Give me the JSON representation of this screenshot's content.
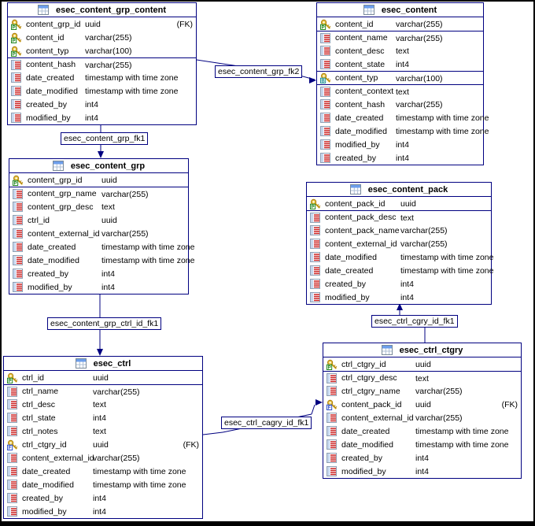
{
  "diagram": {
    "tables": [
      {
        "name": "esec_content_grp_content",
        "columns": [
          {
            "icon": "key-pk",
            "name": "content_grp_id",
            "type": "uuid",
            "tag": "(FK)"
          },
          {
            "icon": "key-pk",
            "name": "content_id",
            "type": "varchar(255)"
          },
          {
            "icon": "key-pk",
            "name": "content_typ",
            "type": "varchar(100)"
          },
          {
            "icon": "column",
            "name": "content_hash",
            "type": "varchar(255)",
            "sepAbove": true
          },
          {
            "icon": "column",
            "name": "date_created",
            "type": "timestamp with time zone"
          },
          {
            "icon": "column",
            "name": "date_modified",
            "type": "timestamp with time zone"
          },
          {
            "icon": "column",
            "name": "created_by",
            "type": "int4"
          },
          {
            "icon": "column",
            "name": "modified_by",
            "type": "int4"
          }
        ]
      },
      {
        "name": "esec_content",
        "columns": [
          {
            "icon": "key-pk",
            "name": "content_id",
            "type": "varchar(255)"
          },
          {
            "icon": "column",
            "name": "content_name",
            "type": "varchar(255)",
            "sepAbove": true
          },
          {
            "icon": "column",
            "name": "content_desc",
            "type": "text"
          },
          {
            "icon": "column",
            "name": "content_state",
            "type": "int4"
          },
          {
            "icon": "key-ak",
            "name": "content_typ",
            "type": "varchar(100)",
            "sepAbove": true
          },
          {
            "icon": "column",
            "name": "content_context",
            "type": "text",
            "sepAbove": true
          },
          {
            "icon": "column",
            "name": "content_hash",
            "type": "varchar(255)"
          },
          {
            "icon": "column",
            "name": "date_created",
            "type": "timestamp with time zone"
          },
          {
            "icon": "column",
            "name": "date_modified",
            "type": "timestamp with time zone"
          },
          {
            "icon": "column",
            "name": "modified_by",
            "type": "int4"
          },
          {
            "icon": "column",
            "name": "created_by",
            "type": "int4"
          }
        ]
      },
      {
        "name": "esec_content_grp",
        "columns": [
          {
            "icon": "key-pk",
            "name": "content_grp_id",
            "type": "uuid"
          },
          {
            "icon": "column",
            "name": "content_grp_name",
            "type": "varchar(255)",
            "sepAbove": true
          },
          {
            "icon": "column",
            "name": "content_grp_desc",
            "type": "text"
          },
          {
            "icon": "column",
            "name": "ctrl_id",
            "type": "uuid"
          },
          {
            "icon": "column",
            "name": "content_external_id",
            "type": "varchar(255)"
          },
          {
            "icon": "column",
            "name": "date_created",
            "type": "timestamp with time zone"
          },
          {
            "icon": "column",
            "name": "date_modified",
            "type": "timestamp with time zone"
          },
          {
            "icon": "column",
            "name": "created_by",
            "type": "int4"
          },
          {
            "icon": "column",
            "name": "modified_by",
            "type": "int4"
          }
        ]
      },
      {
        "name": "esec_content_pack",
        "columns": [
          {
            "icon": "key-pk",
            "name": "content_pack_id",
            "type": "uuid"
          },
          {
            "icon": "column",
            "name": "content_pack_desc",
            "type": "text",
            "sepAbove": true
          },
          {
            "icon": "column",
            "name": "content_pack_name",
            "type": "varchar(255)"
          },
          {
            "icon": "column",
            "name": "content_external_id",
            "type": "varchar(255)"
          },
          {
            "icon": "column",
            "name": "date_modified",
            "type": "timestamp with time zone"
          },
          {
            "icon": "column",
            "name": "date_created",
            "type": "timestamp with time zone"
          },
          {
            "icon": "column",
            "name": "created_by",
            "type": "int4"
          },
          {
            "icon": "column",
            "name": "modified_by",
            "type": "int4"
          }
        ]
      },
      {
        "name": "esec_ctrl",
        "columns": [
          {
            "icon": "key-pk",
            "name": "ctrl_id",
            "type": "uuid"
          },
          {
            "icon": "column",
            "name": "ctrl_name",
            "type": "varchar(255)",
            "sepAbove": true
          },
          {
            "icon": "column",
            "name": "ctrl_desc",
            "type": "text"
          },
          {
            "icon": "column",
            "name": "ctrl_state",
            "type": "int4"
          },
          {
            "icon": "column",
            "name": "ctrl_notes",
            "type": "text"
          },
          {
            "icon": "key-fk",
            "name": "ctrl_ctgry_id",
            "type": "uuid",
            "tag": "(FK)"
          },
          {
            "icon": "column",
            "name": "content_external_id",
            "type": "varchar(255)"
          },
          {
            "icon": "column",
            "name": "date_created",
            "type": "timestamp with time zone"
          },
          {
            "icon": "column",
            "name": "date_modified",
            "type": "timestamp with time zone"
          },
          {
            "icon": "column",
            "name": "created_by",
            "type": "int4"
          },
          {
            "icon": "column",
            "name": "modified_by",
            "type": "int4"
          }
        ]
      },
      {
        "name": "esec_ctrl_ctgry",
        "columns": [
          {
            "icon": "key-pk",
            "name": "ctrl_ctgry_id",
            "type": "uuid"
          },
          {
            "icon": "column",
            "name": "ctrl_ctgry_desc",
            "type": "text",
            "sepAbove": true
          },
          {
            "icon": "column",
            "name": "ctrl_ctgry_name",
            "type": "varchar(255)"
          },
          {
            "icon": "key-fk",
            "name": "content_pack_id",
            "type": "uuid",
            "tag": "(FK)"
          },
          {
            "icon": "column",
            "name": "content_external_id",
            "type": "varchar(255)"
          },
          {
            "icon": "column",
            "name": "date_created",
            "type": "timestamp with time zone"
          },
          {
            "icon": "column",
            "name": "date_modified",
            "type": "timestamp with time zone"
          },
          {
            "icon": "column",
            "name": "created_by",
            "type": "int4"
          },
          {
            "icon": "column",
            "name": "modified_by",
            "type": "int4"
          }
        ]
      }
    ],
    "relations": [
      {
        "label": "esec_content_grp_fk2"
      },
      {
        "label": "esec_content_grp_fk1"
      },
      {
        "label": "esec_content_grp_ctrl_id_fk1"
      },
      {
        "label": "esec_ctrl_cagry_id_fk1"
      },
      {
        "label": "esec_ctrl_cgry_id_fk1"
      }
    ],
    "colors": {
      "line": "#000080",
      "table_border": "#000080",
      "key_gold": "#E8C33C",
      "key_gold_dark": "#A97C10",
      "pk_badge": "#0A7A0A",
      "fk_badge": "#1A3FC4",
      "ak_badge": "#0E8A8A",
      "column_icon_red": "#CC2222",
      "title_icon_blue": "#6D9EEB"
    }
  }
}
